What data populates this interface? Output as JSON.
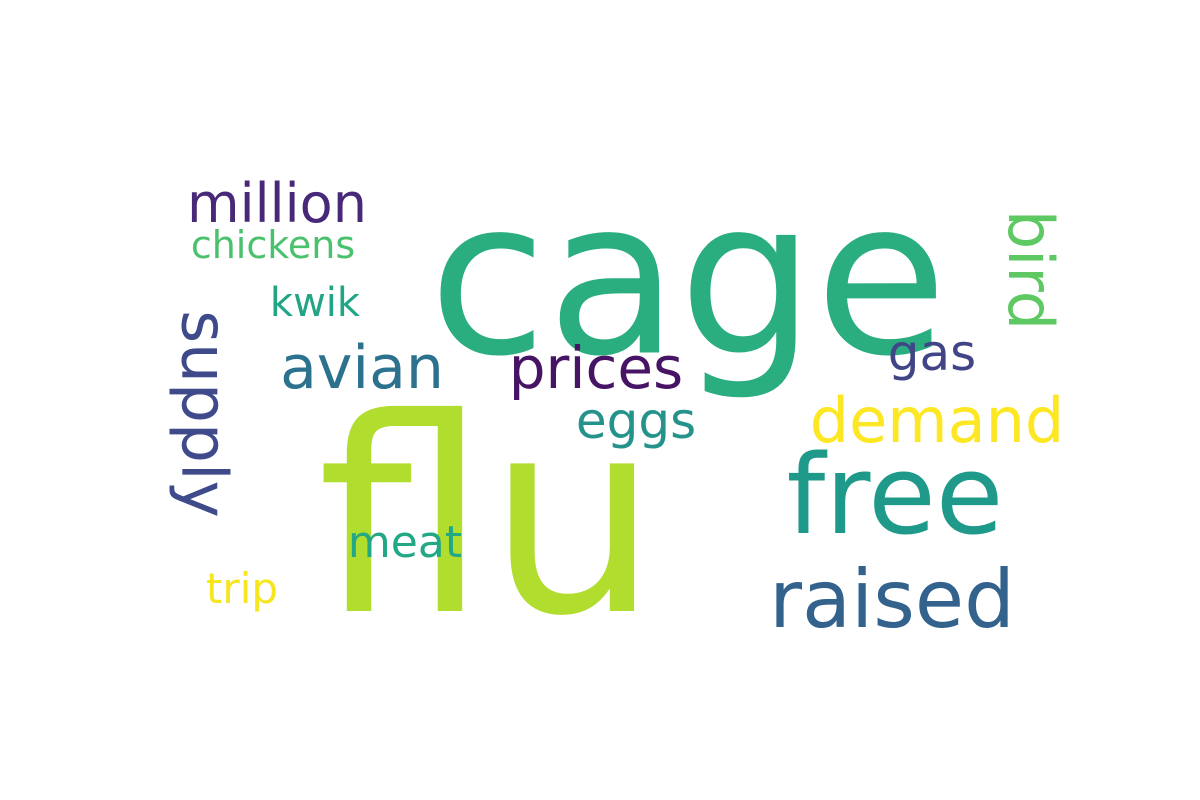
{
  "words": [
    {
      "id": "cage",
      "text": "cage",
      "color": "#2aae7f"
    },
    {
      "id": "flu",
      "text": "flu",
      "color": "#b1dd2f"
    },
    {
      "id": "free",
      "text": "free",
      "color": "#1f9a8a"
    },
    {
      "id": "raised",
      "text": "raised",
      "color": "#33638d"
    },
    {
      "id": "demand",
      "text": "demand",
      "color": "#fde725"
    },
    {
      "id": "bird",
      "text": "bird",
      "color": "#5ec962",
      "orientation": "vertical"
    },
    {
      "id": "supply",
      "text": "supply",
      "color": "#3e4a89",
      "orientation": "vertical"
    },
    {
      "id": "million",
      "text": "million",
      "color": "#482878"
    },
    {
      "id": "chickens",
      "text": "chickens",
      "color": "#4ac16d"
    },
    {
      "id": "kwik",
      "text": "kwik",
      "color": "#21a585"
    },
    {
      "id": "avian",
      "text": "avian",
      "color": "#2c728e"
    },
    {
      "id": "prices",
      "text": "prices",
      "color": "#471365"
    },
    {
      "id": "gas",
      "text": "gas",
      "color": "#414487"
    },
    {
      "id": "eggs",
      "text": "eggs",
      "color": "#25938c"
    },
    {
      "id": "meat",
      "text": "meat",
      "color": "#22a884"
    },
    {
      "id": "trip",
      "text": "trip",
      "color": "#f5e61f"
    }
  ]
}
